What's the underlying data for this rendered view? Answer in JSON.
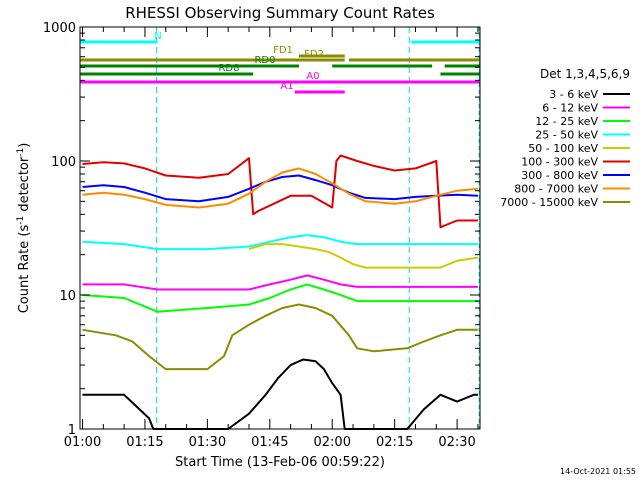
{
  "chart_data": {
    "type": "line",
    "title": "RHESSI Observing Summary Count Rates",
    "xlabel": "Start Time (13-Feb-06 00:59:22)",
    "ylabel_main": "Count Rate (s",
    "ylabel_exp1": "-1",
    "ylabel_mid": " detector",
    "ylabel_exp2": "-1",
    "ylabel_end": ")",
    "x_ticks": [
      "01:00",
      "01:15",
      "01:30",
      "01:45",
      "02:00",
      "02:15",
      "02:30"
    ],
    "x_tick_minutes": [
      60,
      75,
      90,
      105,
      120,
      135,
      150
    ],
    "xlim_minutes": [
      59.4,
      155.5
    ],
    "y_scale": "log",
    "ylim": [
      1,
      1000
    ],
    "y_ticks": [
      1,
      10,
      100,
      1000
    ],
    "y_tick_labels": [
      "1",
      "10",
      "100",
      "1000"
    ],
    "timestamp": "14-Oct-2021 01:55",
    "legend": {
      "title": "Det 1,3,4,5,6,9",
      "entries": [
        {
          "label": "3 - 6 keV",
          "color": "#000000"
        },
        {
          "label": "6 - 12 keV",
          "color": "#ff00ff"
        },
        {
          "label": "12 - 25 keV",
          "color": "#00ff00"
        },
        {
          "label": "25 - 50 keV",
          "color": "#00ffff"
        },
        {
          "label": "50 - 100 keV",
          "color": "#cccc00"
        },
        {
          "label": "100 - 300 keV",
          "color": "#e00000"
        },
        {
          "label": "300 - 800 keV",
          "color": "#0000ff"
        },
        {
          "label": "800 - 7000 keV",
          "color": "#ff8c00"
        },
        {
          "label": "7000 - 15000 keV",
          "color": "#8b8b00"
        }
      ]
    },
    "flags": [
      {
        "label": "N",
        "color": "#00ffff",
        "segments": [
          [
            59.4,
            78
          ],
          [
            139,
            155.5
          ]
        ]
      },
      {
        "label": "FD1",
        "color": "#8b8b00",
        "segments": [
          [
            112,
            123
          ]
        ]
      },
      {
        "label": "FD2",
        "color": "#8b8b00",
        "segments": [
          [
            59.4,
            123
          ],
          [
            124,
            155.5
          ]
        ]
      },
      {
        "label": "RD0",
        "color": "#008000",
        "segments": [
          [
            59.4,
            112
          ],
          [
            120,
            144
          ],
          [
            147,
            155.5
          ]
        ]
      },
      {
        "label": "RD8",
        "color": "#008000",
        "segments": [
          [
            59.4,
            101
          ],
          [
            146,
            155.5
          ]
        ]
      },
      {
        "label": "A0",
        "color": "#ff00ff",
        "segments": [
          [
            59.4,
            155.5
          ]
        ]
      },
      {
        "label": "A1",
        "color": "#ff00ff",
        "segments": [
          [
            111,
            123
          ]
        ]
      }
    ],
    "night_boundaries_minutes": [
      77.8,
      138.5
    ],
    "saa_boundaries_minutes": [
      59.4,
      155.3
    ],
    "series": [
      {
        "name": "3 - 6 keV",
        "color": "#000000",
        "x": [
          60,
          70,
          76,
          77,
          95,
          100,
          104,
          107,
          110,
          113,
          116,
          118,
          120,
          122,
          123,
          138,
          142,
          146,
          150,
          154,
          155
        ],
        "y": [
          1.8,
          1.8,
          1.2,
          1.0,
          1.0,
          1.3,
          1.8,
          2.4,
          3.0,
          3.3,
          3.2,
          2.8,
          2.2,
          1.8,
          1.0,
          1.0,
          1.4,
          1.8,
          1.6,
          1.8,
          1.8
        ]
      },
      {
        "name": "6 - 12 keV",
        "color": "#ff00ff",
        "x": [
          60,
          70,
          78,
          90,
          100,
          105,
          110,
          114,
          118,
          122,
          126,
          135,
          140,
          145,
          150,
          155
        ],
        "y": [
          12,
          12,
          11,
          11,
          11,
          12,
          13,
          14,
          13,
          12,
          11.5,
          11.5,
          11.5,
          11.5,
          11.5,
          11.5
        ]
      },
      {
        "name": "12 - 25 keV",
        "color": "#00ff00",
        "x": [
          60,
          70,
          78,
          90,
          100,
          105,
          110,
          114,
          118,
          122,
          126,
          135,
          140,
          145,
          150,
          155
        ],
        "y": [
          10,
          9.5,
          7.5,
          8,
          8.5,
          9.5,
          11,
          12,
          11,
          10,
          9,
          9,
          9,
          9,
          9,
          9
        ]
      },
      {
        "name": "25 - 50 keV",
        "color": "#00ffff",
        "x": [
          60,
          70,
          78,
          90,
          100,
          105,
          110,
          114,
          118,
          122,
          126,
          135,
          140,
          145,
          150,
          155
        ],
        "y": [
          25,
          24,
          22,
          22,
          23,
          25,
          27,
          28,
          27,
          25,
          24,
          24,
          24,
          24,
          24,
          24
        ]
      },
      {
        "name": "50 - 100 keV",
        "color": "#cccc00",
        "x": [
          100,
          104,
          108,
          112,
          116,
          119,
          122,
          125,
          128,
          146,
          150,
          155
        ],
        "y": [
          22,
          24,
          24,
          23,
          22,
          21,
          19,
          17,
          16,
          16,
          18,
          19
        ]
      },
      {
        "name": "100 - 300 keV",
        "color": "#e00000",
        "x": [
          60,
          65,
          70,
          75,
          80,
          88,
          95,
          100,
          101,
          102,
          110,
          115,
          120,
          121,
          122,
          126,
          130,
          135,
          140,
          145,
          146,
          147,
          150,
          155
        ],
        "y": [
          95,
          98,
          96,
          88,
          78,
          75,
          80,
          105,
          40,
          42,
          55,
          55,
          45,
          100,
          110,
          100,
          92,
          85,
          88,
          100,
          32,
          33,
          36,
          36
        ]
      },
      {
        "name": "300 - 800 keV",
        "color": "#0000ff",
        "x": [
          60,
          65,
          70,
          75,
          80,
          88,
          95,
          100,
          104,
          108,
          112,
          116,
          120,
          124,
          128,
          135,
          140,
          145,
          150,
          155
        ],
        "y": [
          64,
          66,
          64,
          58,
          52,
          50,
          54,
          62,
          70,
          76,
          78,
          72,
          66,
          58,
          53,
          52,
          54,
          55,
          56,
          55
        ]
      },
      {
        "name": "800 - 7000 keV",
        "color": "#ff8c00",
        "x": [
          60,
          65,
          70,
          75,
          80,
          88,
          95,
          100,
          104,
          108,
          112,
          116,
          120,
          124,
          128,
          135,
          140,
          145,
          150,
          155
        ],
        "y": [
          56,
          58,
          56,
          52,
          47,
          45,
          48,
          57,
          70,
          82,
          88,
          80,
          68,
          57,
          50,
          48,
          50,
          55,
          60,
          62
        ]
      },
      {
        "name": "7000 - 15000 keV",
        "color": "#8b8b00",
        "x": [
          60,
          68,
          72,
          76,
          80,
          90,
          94,
          96,
          100,
          104,
          108,
          112,
          116,
          120,
          124,
          126,
          130,
          138,
          142,
          146,
          150,
          155
        ],
        "y": [
          5.5,
          5.0,
          4.5,
          3.5,
          2.8,
          2.8,
          3.5,
          5.0,
          6.0,
          7.0,
          8.0,
          8.5,
          8.0,
          7.0,
          5.0,
          4.0,
          3.8,
          4.0,
          4.5,
          5.0,
          5.5,
          5.5
        ]
      }
    ]
  }
}
